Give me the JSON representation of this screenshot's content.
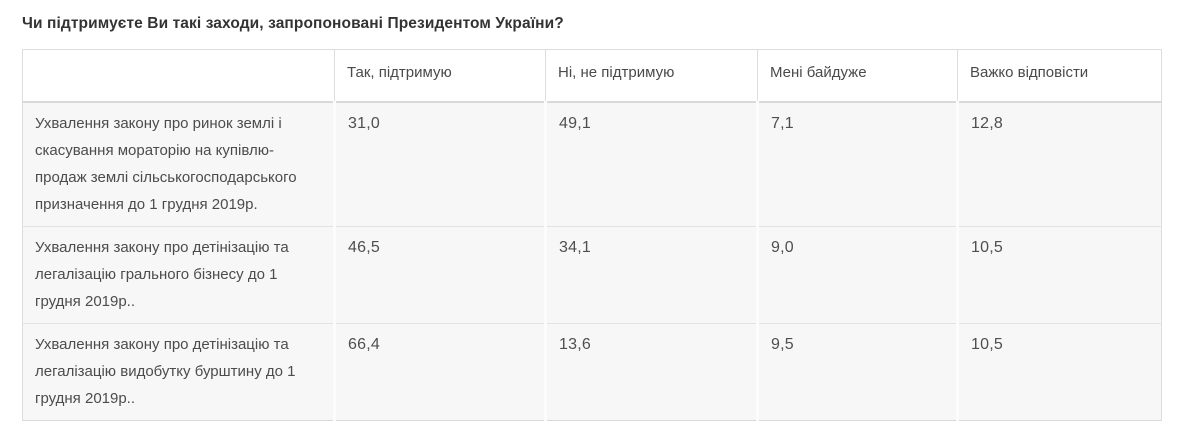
{
  "page": {
    "title": "Чи підтримуєте Ви такі заходи, запропоновані Президентом України?"
  },
  "table": {
    "columns": [
      "",
      "Так, підтримую",
      "Ні, не підтримую",
      "Мені байдуже",
      "Важко відповісти"
    ],
    "rows": [
      {
        "label": "Ухвалення закону про ринок землі і скасування мораторію на купівлю-продаж землі сільськогосподарського призначення до 1 грудня 2019р.",
        "values": [
          "31,0",
          "49,1",
          "7,1",
          "12,8"
        ]
      },
      {
        "label": "Ухвалення закону про детінізацію та легалізацію грального бізнесу до 1 грудня 2019р..",
        "values": [
          "46,5",
          "34,1",
          "9,0",
          "10,5"
        ]
      },
      {
        "label": "Ухвалення закону про детінізацію та легалізацію видобутку бурштину до 1 грудня 2019р..",
        "values": [
          "66,4",
          "13,6",
          "9,5",
          "10,5"
        ]
      }
    ]
  },
  "chart_data": {
    "type": "table",
    "title": "Чи підтримуєте Ви такі заходи, запропоновані Президентом України?",
    "columns": [
      "Так, підтримую",
      "Ні, не підтримую",
      "Мені байдуже",
      "Важко відповісти"
    ],
    "rows": [
      {
        "label": "Ухвалення закону про ринок землі і скасування мораторію на купівлю-продаж землі сільськогосподарського призначення до 1 грудня 2019р.",
        "values": [
          31.0,
          49.1,
          7.1,
          12.8
        ]
      },
      {
        "label": "Ухвалення закону про детінізацію та легалізацію грального бізнесу до 1 грудня 2019р..",
        "values": [
          46.5,
          34.1,
          9.0,
          10.5
        ]
      },
      {
        "label": "Ухвалення закону про детінізацію та легалізацію видобутку бурштину до 1 грудня 2019р..",
        "values": [
          66.4,
          13.6,
          9.5,
          10.5
        ]
      }
    ],
    "units": "percent"
  },
  "colors": {
    "header_bg": "#ffffff",
    "row_bg": "#f7f7f7",
    "border": "#dddddd",
    "title_text": "#333333",
    "cell_text": "#4c4c4c"
  }
}
